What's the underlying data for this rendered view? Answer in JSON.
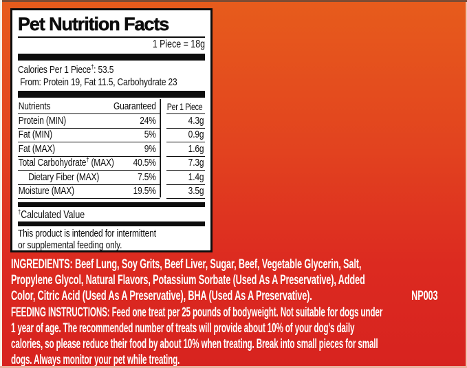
{
  "background": {
    "top_color": "#e75c1c",
    "bottom_color": "#d7231f"
  },
  "panel": {
    "title": "Pet Nutrition Facts",
    "serving": "1 Piece = 18g",
    "calories": {
      "pre": "Calories Per 1 Piece",
      "dagger": "†",
      "post": ": 53.5",
      "from_line": "From: Protein 19, Fat 11.5, Carbohydrate 23"
    },
    "table": {
      "headers": {
        "nutrient": "Nutrients",
        "guaranteed": "Guaranteed",
        "per_piece": "Per 1 Piece"
      },
      "rows": [
        {
          "label": "Protein (MIN)",
          "guaranteed": "24%",
          "per_piece": "4.3g"
        },
        {
          "label": "Fat (MIN)",
          "guaranteed": "5%",
          "per_piece": "0.9g"
        },
        {
          "label": "Fat (MAX)",
          "guaranteed": "9%",
          "per_piece": "1.6g"
        },
        {
          "label_pre": "Total Carbohydrate",
          "label_dagger": "†",
          "label_post": " (MAX)",
          "guaranteed": "40.5%",
          "per_piece": "7.3g"
        },
        {
          "label": "Dietary Fiber (MAX)",
          "indent": true,
          "guaranteed": "7.5%",
          "per_piece": "1.4g"
        },
        {
          "label": "Moisture (MAX)",
          "guaranteed": "19.5%",
          "per_piece": "3.5g"
        }
      ]
    },
    "footnote": {
      "dagger": "†",
      "text": "Calculated Value"
    },
    "note_lines": [
      "This product is intended for intermittent",
      "or supplemental feeding only."
    ]
  },
  "ingredients": {
    "lines": [
      "INGREDIENTS: Beef Lung, Soy Grits, Beef Liver, Sugar, Beef, Vegetable Glycerin, Salt,",
      "Propylene Glycol, Natural Flavors, Potassium Sorbate (Used As A Preservative), Added",
      "Color, Citric Acid (Used As A Preservative), BHA (Used As A Preservative)."
    ],
    "code": "NP003"
  },
  "feeding": {
    "lines": [
      "FEEDING INSTRUCTIONS: Feed one treat per 25 pounds of bodyweight. Not suitable for dogs under",
      "1 year of age. The recommended number of treats will provide about 10% of your dog's daily",
      "calories, so please reduce their food by about 10% when treating. Break into small pieces for small",
      "dogs. Always monitor your pet while treating."
    ]
  }
}
